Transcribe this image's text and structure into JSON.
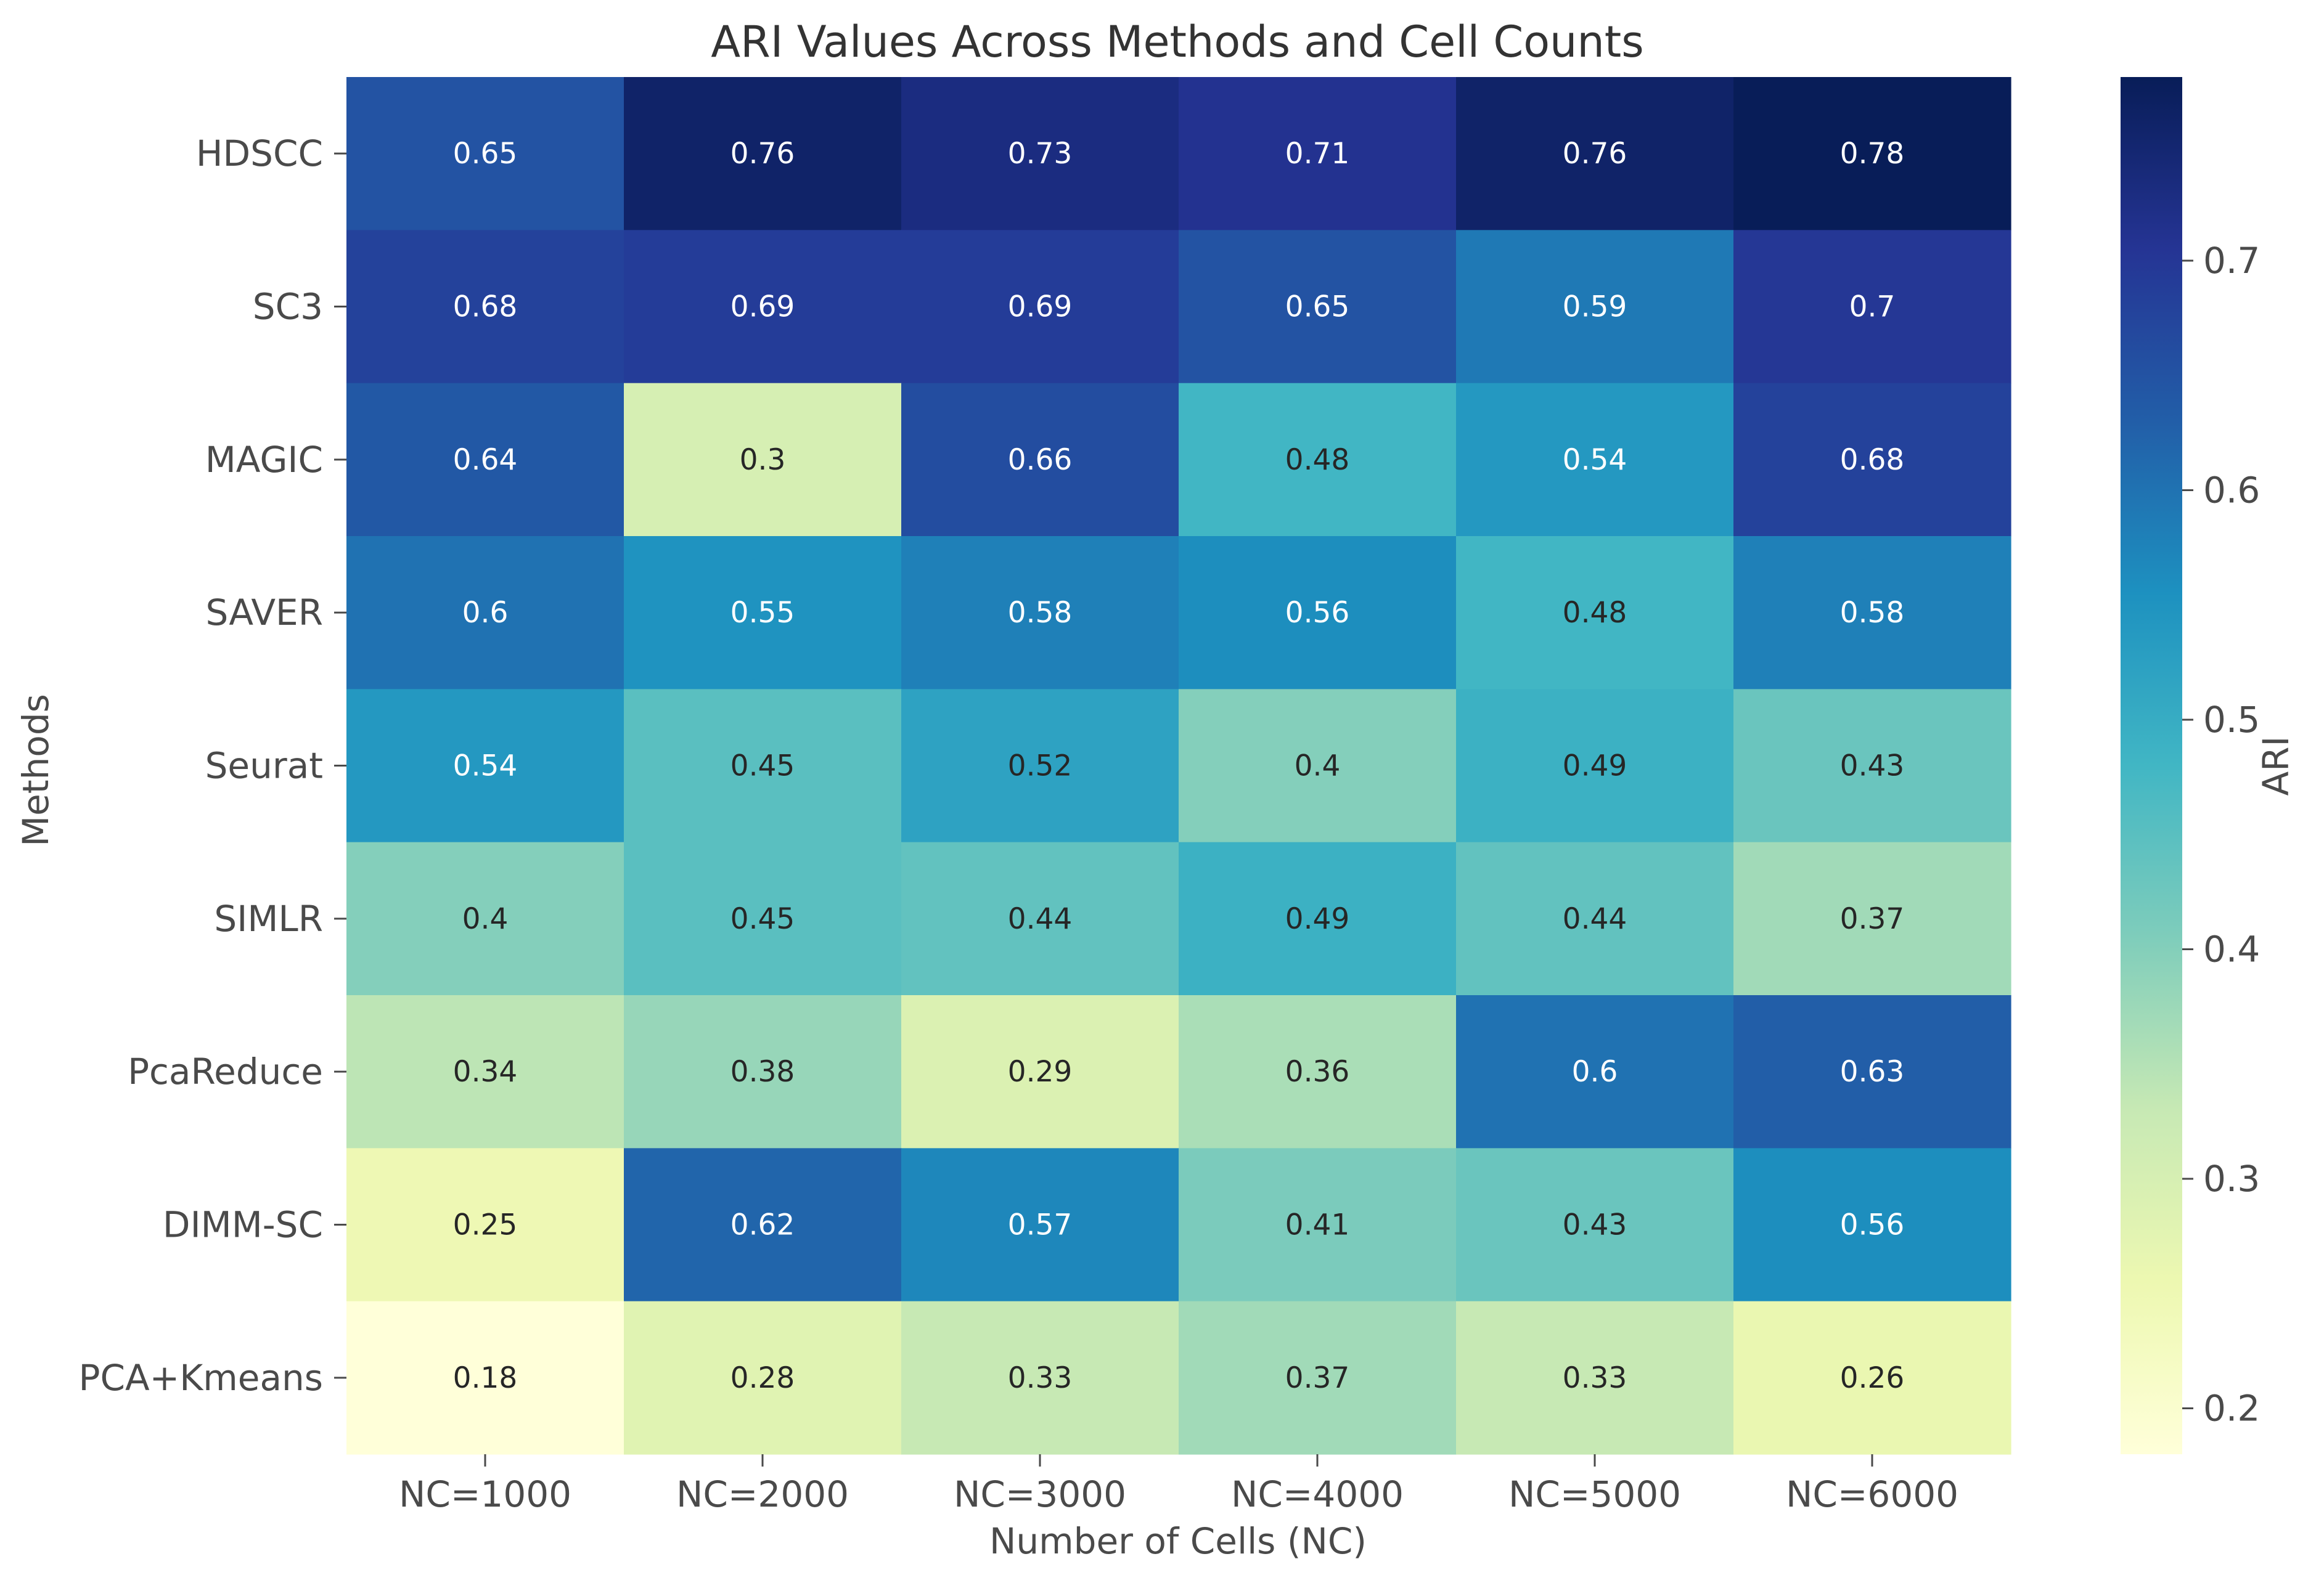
{
  "chart_data": {
    "type": "heatmap",
    "title": "ARI Values Across Methods and Cell Counts",
    "xlabel": "Number of Cells (NC)",
    "ylabel": "Methods",
    "x_categories": [
      "NC=1000",
      "NC=2000",
      "NC=3000",
      "NC=4000",
      "NC=5000",
      "NC=6000"
    ],
    "y_categories": [
      "HDSCC",
      "SC3",
      "MAGIC",
      "SAVER",
      "Seurat",
      "SIMLR",
      "PcaReduce",
      "DIMM-SC",
      "PCA+Kmeans"
    ],
    "values": [
      [
        0.65,
        0.76,
        0.73,
        0.71,
        0.76,
        0.78
      ],
      [
        0.68,
        0.69,
        0.69,
        0.65,
        0.59,
        0.7
      ],
      [
        0.64,
        0.3,
        0.66,
        0.48,
        0.54,
        0.68
      ],
      [
        0.6,
        0.55,
        0.58,
        0.56,
        0.48,
        0.58
      ],
      [
        0.54,
        0.45,
        0.52,
        0.4,
        0.49,
        0.43
      ],
      [
        0.4,
        0.45,
        0.44,
        0.49,
        0.44,
        0.37
      ],
      [
        0.34,
        0.38,
        0.29,
        0.36,
        0.6,
        0.63
      ],
      [
        0.25,
        0.62,
        0.57,
        0.41,
        0.43,
        0.56
      ],
      [
        0.18,
        0.28,
        0.33,
        0.37,
        0.33,
        0.26
      ]
    ],
    "cell_labels": [
      [
        "0.65",
        "0.76",
        "0.73",
        "0.71",
        "0.76",
        "0.78"
      ],
      [
        "0.68",
        "0.69",
        "0.69",
        "0.65",
        "0.59",
        "0.7"
      ],
      [
        "0.64",
        "0.3",
        "0.66",
        "0.48",
        "0.54",
        "0.68"
      ],
      [
        "0.6",
        "0.55",
        "0.58",
        "0.56",
        "0.48",
        "0.58"
      ],
      [
        "0.54",
        "0.45",
        "0.52",
        "0.4",
        "0.49",
        "0.43"
      ],
      [
        "0.4",
        "0.45",
        "0.44",
        "0.49",
        "0.44",
        "0.37"
      ],
      [
        "0.34",
        "0.38",
        "0.29",
        "0.36",
        "0.6",
        "0.63"
      ],
      [
        "0.25",
        "0.62",
        "0.57",
        "0.41",
        "0.43",
        "0.56"
      ],
      [
        "0.18",
        "0.28",
        "0.33",
        "0.37",
        "0.33",
        "0.26"
      ]
    ],
    "colormap": "YlGnBu",
    "vmin": 0.18,
    "vmax": 0.78,
    "colorbar": {
      "label": "ARI",
      "ticks": [
        0.2,
        0.3,
        0.4,
        0.5,
        0.6,
        0.7
      ],
      "tick_labels": [
        "0.2",
        "0.3",
        "0.4",
        "0.5",
        "0.6",
        "0.7"
      ]
    },
    "grid": false,
    "legend": "none",
    "colors": {
      "background": "#ffffff",
      "text": "#4a4a4a",
      "title": "#333333",
      "label_dark": "#262626",
      "label_light": "#ffffff",
      "colormap_stops": [
        "#ffffd9",
        "#edf8b1",
        "#c7e9b4",
        "#7fcdbb",
        "#41b6c4",
        "#1d91c0",
        "#225ea8",
        "#253494",
        "#081d58"
      ]
    }
  }
}
